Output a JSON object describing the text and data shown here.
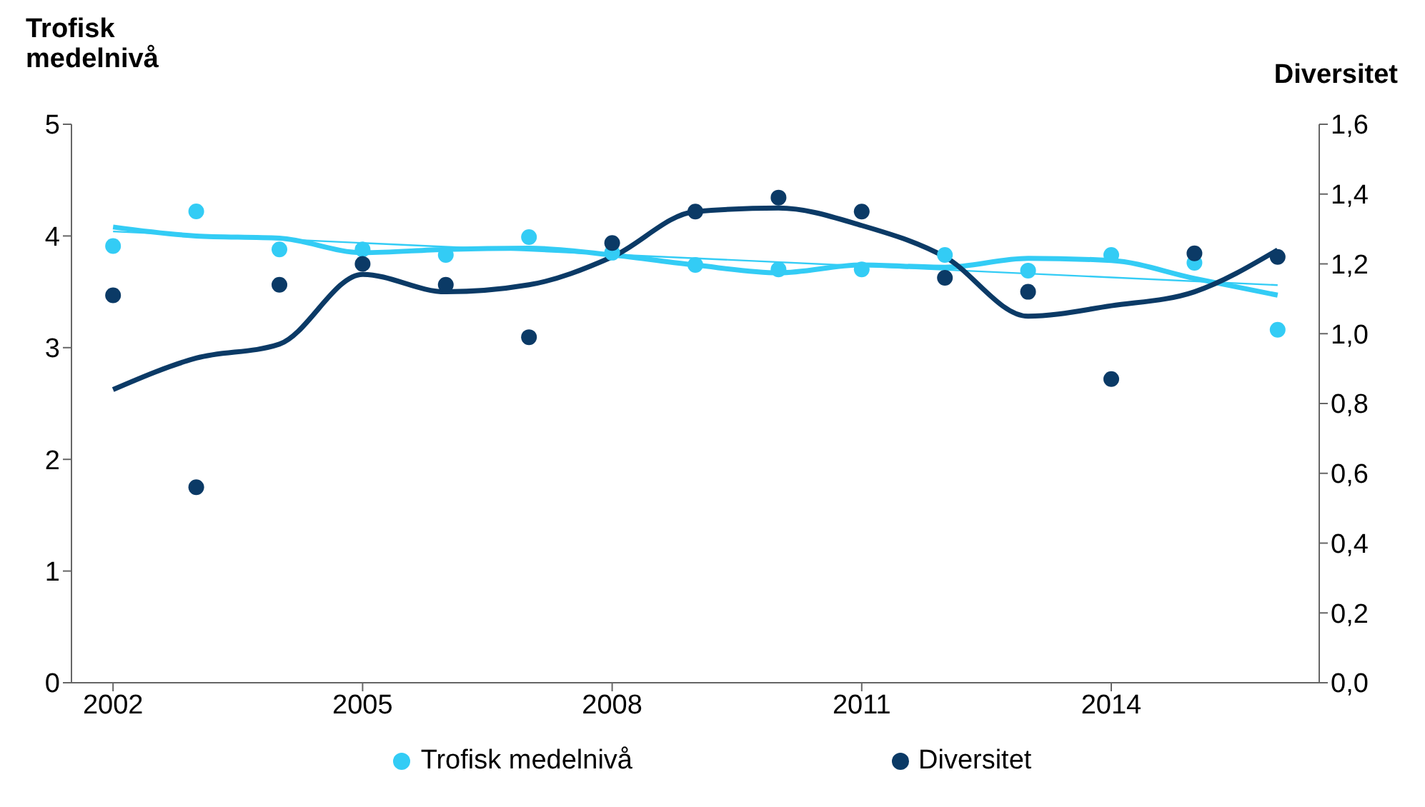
{
  "chart_data": {
    "type": "scatter",
    "ylabel": "Trofisk\nmedelnivå",
    "y2label": "Diversitet",
    "x": [
      2002,
      2003,
      2004,
      2005,
      2006,
      2007,
      2008,
      2009,
      2010,
      2011,
      2012,
      2013,
      2014,
      2015,
      2016
    ],
    "xlim": [
      2001.5,
      2016.5
    ],
    "xticks": [
      2002,
      2005,
      2008,
      2011,
      2014
    ],
    "ylim": [
      0,
      5
    ],
    "yticks": [
      0,
      1,
      2,
      3,
      4,
      5
    ],
    "y2lim": [
      0,
      1.6
    ],
    "y2ticks": [
      {
        "value": 0,
        "label": "0,0"
      },
      {
        "value": 0.2,
        "label": "0,2"
      },
      {
        "value": 0.4,
        "label": "0,4"
      },
      {
        "value": 0.6,
        "label": "0,6"
      },
      {
        "value": 0.8,
        "label": "0,8"
      },
      {
        "value": 1,
        "label": "1,0"
      },
      {
        "value": 1.2,
        "label": "1,2"
      },
      {
        "value": 1.4,
        "label": "1,4"
      },
      {
        "value": 1.6,
        "label": "1,6"
      }
    ],
    "grid": false,
    "legend": "bottom",
    "marker": "circle",
    "series": [
      {
        "type": "line",
        "color": "#33ccf5",
        "marker": "none",
        "line_style": "solid",
        "values": [
          4.08,
          4.0,
          3.98,
          3.85,
          3.88,
          3.89,
          3.83,
          3.74,
          3.67,
          3.74,
          3.72,
          3.8,
          3.78,
          3.62,
          3.47
        ]
      },
      {
        "type": "line",
        "color": "#33ccf5",
        "marker": "none",
        "line_style": "solid",
        "x": [
          2002,
          2016
        ],
        "values": [
          4.04,
          3.56
        ]
      },
      {
        "type": "line",
        "color": "#0b3a66",
        "marker": "none",
        "line_style": "solid",
        "axis": "y2",
        "values": [
          0.84,
          0.93,
          0.97,
          1.17,
          1.12,
          1.14,
          1.22,
          1.35,
          1.36,
          1.31,
          1.22,
          1.05,
          1.08,
          1.12,
          1.24
        ]
      },
      {
        "name": "Trofisk medelnivå",
        "color": "#33ccf5",
        "values": [
          3.91,
          4.22,
          3.88,
          3.88,
          3.83,
          3.99,
          3.85,
          3.74,
          3.7,
          3.7,
          3.83,
          3.69,
          3.83,
          3.76,
          3.16
        ]
      },
      {
        "name": "Diversitet",
        "color": "#0b3a66",
        "axis": "y2",
        "values": [
          1.11,
          0.56,
          1.14,
          1.2,
          1.14,
          0.99,
          1.26,
          1.35,
          1.39,
          1.35,
          1.16,
          1.12,
          0.87,
          1.23,
          1.22
        ]
      }
    ]
  }
}
